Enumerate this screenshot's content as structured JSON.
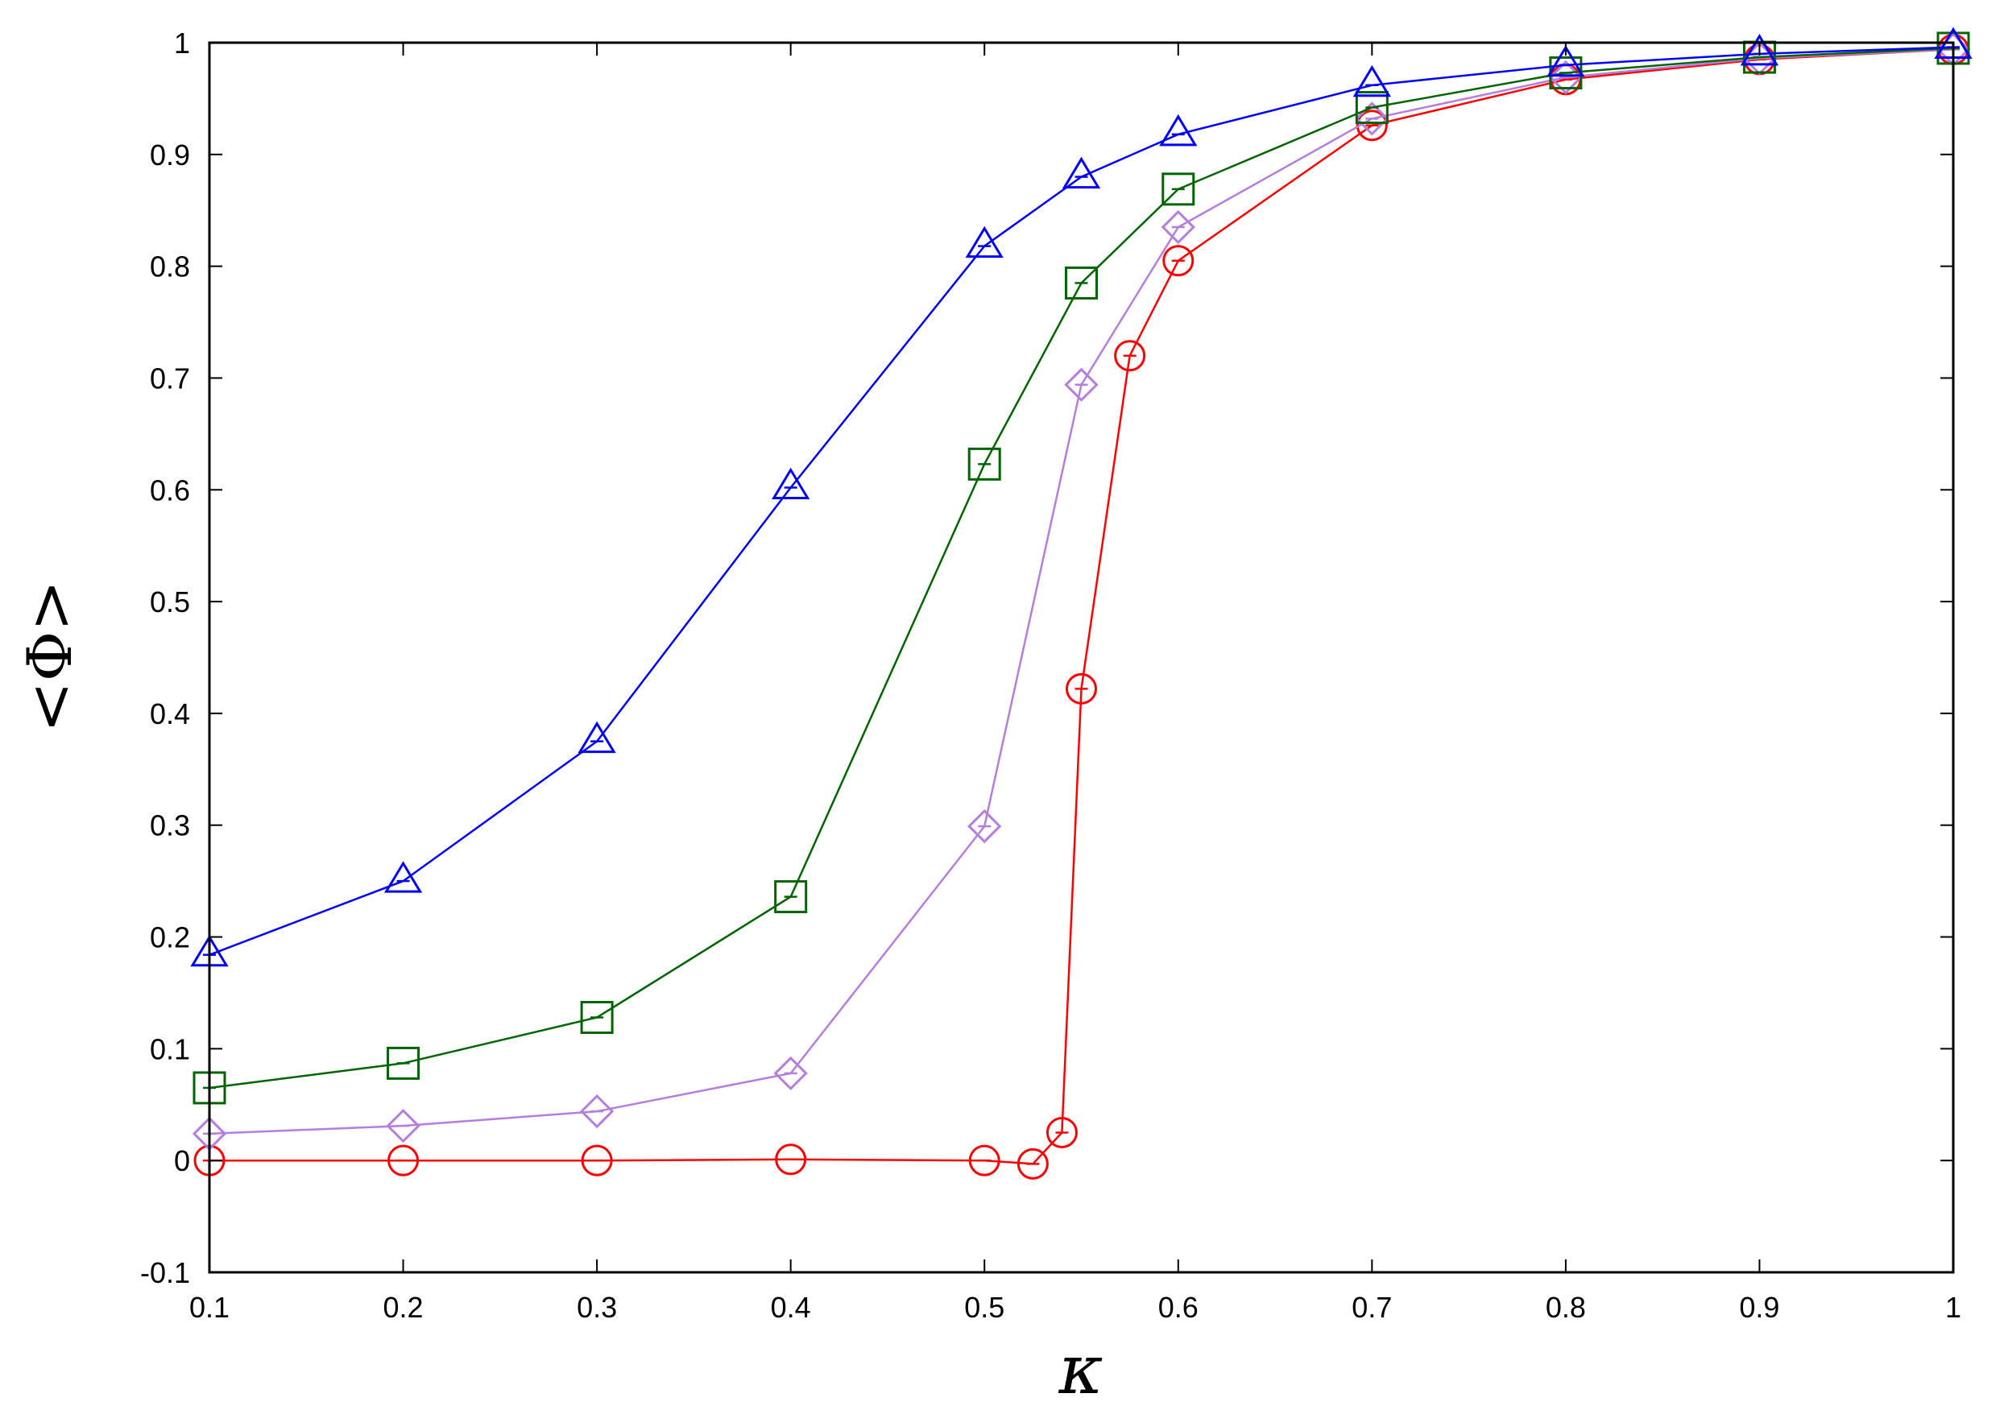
{
  "chart_data": {
    "type": "line",
    "title": "",
    "xlabel": "κ",
    "ylabel": "<Φ>",
    "xlim": [
      0.1,
      1.0
    ],
    "ylim": [
      -0.1,
      1.0
    ],
    "x_ticks": [
      "0.1",
      "0.2",
      "0.3",
      "0.4",
      "0.5",
      "0.6",
      "0.7",
      "0.8",
      "0.9",
      "1"
    ],
    "y_ticks": [
      "-0.1",
      "0",
      "0.1",
      "0.2",
      "0.3",
      "0.4",
      "0.5",
      "0.6",
      "0.7",
      "0.8",
      "0.9",
      "1"
    ],
    "grid": false,
    "legend": "none",
    "series": [
      {
        "color": "#ff0000",
        "marker": "circle",
        "x": [
          0.1,
          0.2,
          0.3,
          0.4,
          0.5,
          0.525,
          0.54,
          0.55,
          0.575,
          0.6,
          0.7,
          0.8,
          0.9,
          1.0
        ],
        "y": [
          0.0,
          0.0,
          0.0,
          0.001,
          0.0,
          -0.003,
          0.025,
          0.422,
          0.72,
          0.805,
          0.926,
          0.967,
          0.985,
          0.994
        ]
      },
      {
        "color": "#b57edc",
        "marker": "diamond",
        "x": [
          0.1,
          0.2,
          0.3,
          0.4,
          0.5,
          0.55,
          0.6,
          0.7,
          0.8,
          0.9,
          1.0
        ],
        "y": [
          0.024,
          0.031,
          0.044,
          0.078,
          0.299,
          0.694,
          0.835,
          0.932,
          0.969,
          0.986,
          0.994
        ]
      },
      {
        "color": "#006400",
        "marker": "square",
        "x": [
          0.1,
          0.2,
          0.3,
          0.4,
          0.5,
          0.55,
          0.6,
          0.7,
          0.8,
          0.9,
          1.0
        ],
        "y": [
          0.065,
          0.087,
          0.128,
          0.236,
          0.623,
          0.785,
          0.869,
          0.942,
          0.973,
          0.987,
          0.995
        ]
      },
      {
        "color": "#0000ff",
        "marker": "triangle",
        "x": [
          0.1,
          0.2,
          0.3,
          0.4,
          0.5,
          0.55,
          0.6,
          0.7,
          0.8,
          0.9,
          1.0
        ],
        "y": [
          0.184,
          0.25,
          0.375,
          0.602,
          0.818,
          0.88,
          0.918,
          0.962,
          0.98,
          0.99,
          0.996
        ]
      }
    ]
  }
}
